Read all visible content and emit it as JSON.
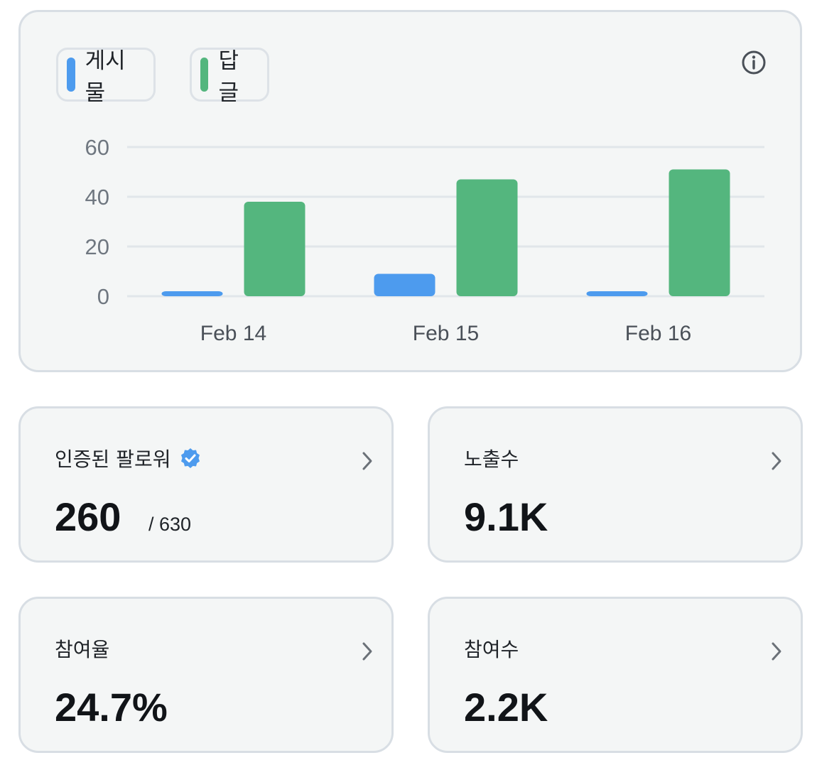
{
  "legend": {
    "posts_label": "게시물",
    "replies_label": "답글",
    "posts_color": "#4d9bee",
    "replies_color": "#54b67e"
  },
  "icons": {
    "info": "info-icon",
    "verified": "verified-badge-icon",
    "chevron": "chevron-right-icon"
  },
  "chart_data": {
    "type": "bar",
    "categories": [
      "Feb 14",
      "Feb 15",
      "Feb 16"
    ],
    "series": [
      {
        "name": "게시물",
        "values": [
          2,
          9,
          2
        ],
        "color": "#4d9bee"
      },
      {
        "name": "답글",
        "values": [
          38,
          47,
          51
        ],
        "color": "#54b67e"
      }
    ],
    "yticks": [
      0,
      20,
      40,
      60
    ],
    "ylim": [
      0,
      60
    ],
    "grid": true,
    "legend_position": "top-left"
  },
  "stats": {
    "verified_followers": {
      "title": "인증된 팔로워",
      "value": "260",
      "sub": "/ 630"
    },
    "impressions": {
      "title": "노출수",
      "value": "9.1K"
    },
    "engagement_rate": {
      "title": "참여율",
      "value": "24.7%"
    },
    "engagements": {
      "title": "참여수",
      "value": "2.2K"
    }
  }
}
